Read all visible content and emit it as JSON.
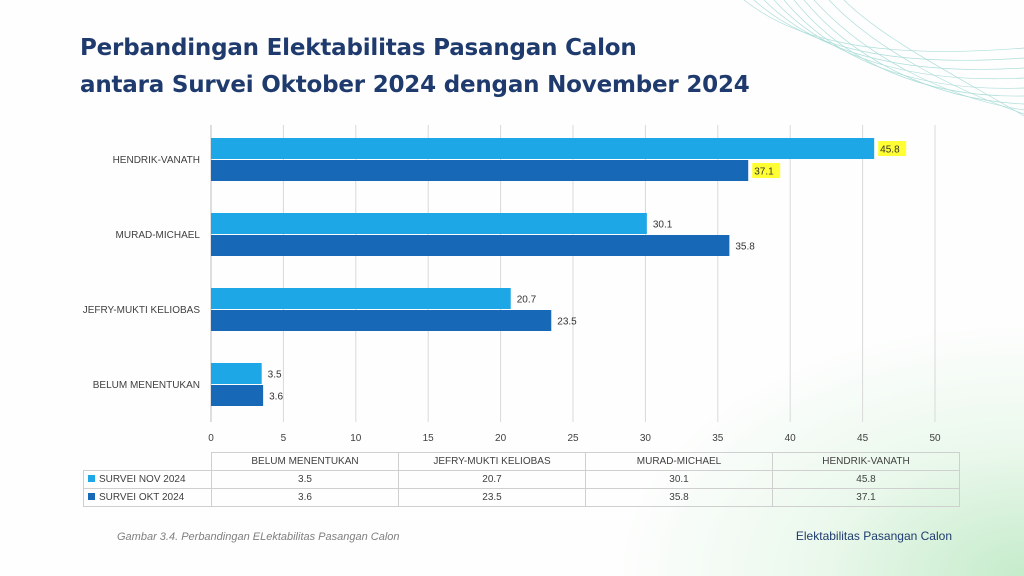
{
  "title_lines": [
    "Perbandingan Elektabilitas Pasangan Calon",
    "antara Survei Oktober 2024 dengan November 2024"
  ],
  "caption": "Gambar 3.4. Perbandingan ELektabilitas Pasangan Calon",
  "footer": "Elektabilitas Pasangan Calon",
  "chart_data": {
    "type": "bar",
    "orientation": "horizontal",
    "categories": [
      "HENDRIK-VANATH",
      "MURAD-MICHAEL",
      "JEFRY-MUKTI KELIOBAS",
      "BELUM MENENTUKAN"
    ],
    "series": [
      {
        "name": "SURVEI NOV 2024",
        "color": "#1ea7e6",
        "values": [
          45.8,
          30.1,
          20.7,
          3.5
        ]
      },
      {
        "name": "SURVEI OKT 2024",
        "color": "#1769b8",
        "values": [
          37.1,
          35.8,
          23.5,
          3.6
        ]
      }
    ],
    "xlim": [
      0,
      50
    ],
    "xticks": [
      0,
      5,
      10,
      15,
      20,
      25,
      30,
      35,
      40,
      45,
      50
    ],
    "grid": true,
    "highlight_color": "#ffff33",
    "highlight_category": "HENDRIK-VANATH",
    "data_table": {
      "columns": [
        "BELUM MENENTUKAN",
        "JEFRY-MUKTI KELIOBAS",
        "MURAD-MICHAEL",
        "HENDRIK-VANATH"
      ],
      "rows": [
        {
          "name": "SURVEI NOV 2024",
          "values": [
            "3.5",
            "20.7",
            "30.1",
            "45.8"
          ]
        },
        {
          "name": "SURVEI OKT 2024",
          "values": [
            "3.6",
            "23.5",
            "35.8",
            "37.1"
          ]
        }
      ]
    }
  }
}
